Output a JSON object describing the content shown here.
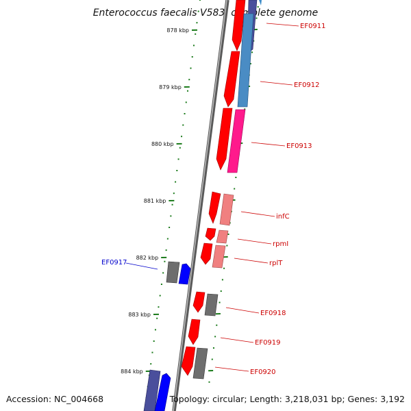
{
  "title": "Enterococcus faecalis V583, complete genome",
  "footer": {
    "accession": "Accession: NC_004668",
    "summary": "Topology: circular; Length: 3,218,031 bp; Genes: 3,192"
  },
  "colors": {
    "tick": "#1a7a1a",
    "backbone": "#7f7f7f",
    "label_red": "#cc0000",
    "label_blue": "#0000cc"
  },
  "ruler": [
    {
      "label": "878 kbp"
    },
    {
      "label": "879 kbp"
    },
    {
      "label": "880 kbp"
    },
    {
      "label": "881 kbp"
    },
    {
      "label": "882 kbp"
    },
    {
      "label": "883 kbp"
    },
    {
      "label": "884 kbp"
    }
  ],
  "genes": [
    {
      "name": "EF0911",
      "label_color": "red"
    },
    {
      "name": "EF0912",
      "label_color": "red"
    },
    {
      "name": "EF0913",
      "label_color": "red"
    },
    {
      "name": "infC",
      "label_color": "red"
    },
    {
      "name": "rpmI",
      "label_color": "red"
    },
    {
      "name": "rplT",
      "label_color": "red"
    },
    {
      "name": "EF0917",
      "label_color": "blue"
    },
    {
      "name": "EF0918",
      "label_color": "red"
    },
    {
      "name": "EF0919",
      "label_color": "red"
    },
    {
      "name": "EF0920",
      "label_color": "red"
    }
  ]
}
